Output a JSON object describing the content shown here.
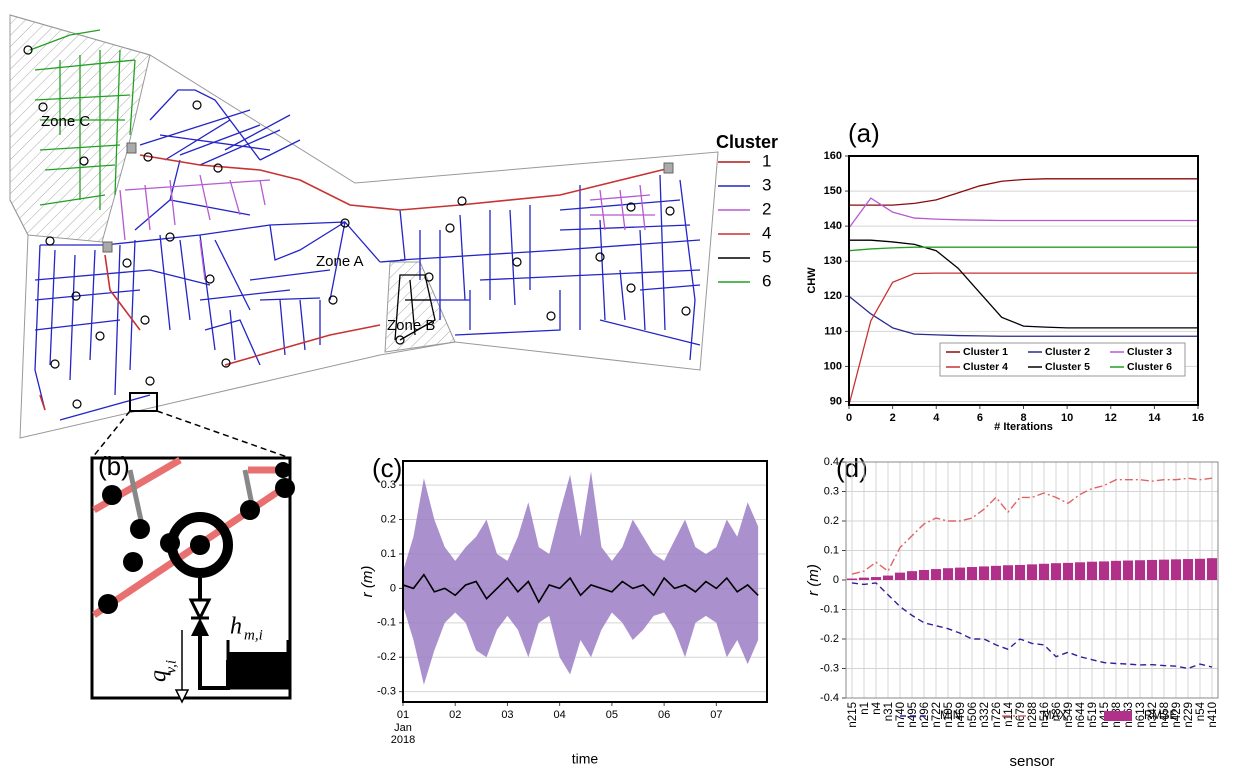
{
  "map": {
    "zones": [
      "Zone A",
      "Zone B",
      "Zone C"
    ],
    "legend_title": "Cluster",
    "clusters": [
      {
        "label": "1",
        "color": "#b01c1c"
      },
      {
        "label": "3",
        "color": "#2424c8"
      },
      {
        "label": "2",
        "color": "#b55ad2"
      },
      {
        "label": "4",
        "color": "#c83232"
      },
      {
        "label": "5",
        "color": "#000000"
      },
      {
        "label": "6",
        "color": "#22a022"
      }
    ]
  },
  "inset": {
    "label": "(b)",
    "flow_symbol": "q",
    "flow_subscript": "v,i",
    "head_symbol": "h",
    "head_subscript": "m,i"
  },
  "chart_data": [
    {
      "type": "line",
      "title": "(a)",
      "xlabel": "# Iterations",
      "ylabel": "CHW",
      "x": [
        0,
        1,
        2,
        3,
        4,
        5,
        6,
        7,
        8,
        9,
        10,
        11,
        12,
        13,
        14,
        15,
        16
      ],
      "xlim": [
        0,
        16
      ],
      "xticks": [
        0,
        2,
        4,
        6,
        8,
        10,
        12,
        14,
        16
      ],
      "ylim": [
        89,
        160
      ],
      "yticks": [
        90,
        100,
        110,
        120,
        130,
        140,
        150,
        160
      ],
      "grid": true,
      "series": [
        {
          "name": "Cluster 1",
          "color": "#8b0a0a",
          "values": [
            146,
            146,
            146,
            146.5,
            147.5,
            149.5,
            151.5,
            152.8,
            153.3,
            153.5,
            153.5,
            153.5,
            153.5,
            153.5,
            153.5,
            153.5,
            153.5
          ]
        },
        {
          "name": "Cluster 2",
          "color": "#2a2a8a",
          "values": [
            120,
            115,
            111,
            109.2,
            109,
            108.8,
            108.7,
            108.6,
            108.6,
            108.6,
            108.6,
            108.6,
            108.6,
            108.6,
            108.6,
            108.6,
            108.6
          ]
        },
        {
          "name": "Cluster 3",
          "color": "#b55ad2",
          "values": [
            139.5,
            148,
            144,
            142.3,
            142,
            141.8,
            141.7,
            141.6,
            141.6,
            141.6,
            141.6,
            141.6,
            141.6,
            141.6,
            141.6,
            141.6,
            141.6
          ]
        },
        {
          "name": "Cluster 4",
          "color": "#c83232",
          "values": [
            89,
            113,
            124,
            126.5,
            126.6,
            126.6,
            126.6,
            126.6,
            126.6,
            126.6,
            126.6,
            126.6,
            126.6,
            126.6,
            126.6,
            126.6,
            126.6
          ]
        },
        {
          "name": "Cluster 5",
          "color": "#000000",
          "values": [
            136,
            136,
            135.5,
            134.8,
            133,
            128,
            121,
            114,
            111.5,
            111.2,
            111,
            111,
            111,
            111,
            111,
            111,
            111
          ]
        },
        {
          "name": "Cluster 6",
          "color": "#22a022",
          "values": [
            133,
            133.5,
            133.8,
            134,
            134,
            134,
            134,
            134,
            134,
            134,
            134,
            134,
            134,
            134,
            134,
            134,
            134
          ]
        }
      ]
    },
    {
      "type": "band",
      "title": "(c)",
      "xlabel": "time",
      "ylabel": "r (m)",
      "x": [
        1.0,
        1.2,
        1.4,
        1.6,
        1.8,
        2.0,
        2.2,
        2.4,
        2.6,
        2.8,
        3.0,
        3.2,
        3.4,
        3.6,
        3.8,
        4.0,
        4.2,
        4.4,
        4.6,
        4.8,
        5.0,
        5.2,
        5.4,
        5.6,
        5.8,
        6.0,
        6.2,
        6.4,
        6.6,
        6.8,
        7.0,
        7.2,
        7.4,
        7.6,
        7.8
      ],
      "xlim": [
        1,
        7.97
      ],
      "xticks": [
        {
          "value": 1,
          "label": "01"
        },
        {
          "value": 2,
          "label": "02"
        },
        {
          "value": 3,
          "label": "03"
        },
        {
          "value": 4,
          "label": "04"
        },
        {
          "value": 5,
          "label": "05"
        },
        {
          "value": 6,
          "label": "06"
        },
        {
          "value": 7,
          "label": "07"
        }
      ],
      "x_sublabels": [
        "Jan",
        "2018"
      ],
      "ylim": [
        -0.33,
        0.37
      ],
      "yticks": [
        -0.3,
        -0.2,
        -0.1,
        0.0,
        0.1,
        0.2,
        0.3
      ],
      "grid": true,
      "color": "#000000",
      "values": [
        0.01,
        0.0,
        0.04,
        -0.01,
        0.0,
        -0.02,
        0.01,
        0.02,
        -0.03,
        0.0,
        0.03,
        -0.01,
        0.02,
        -0.04,
        0.01,
        0.0,
        0.03,
        -0.02,
        0.01,
        0.0,
        -0.01,
        0.02,
        0.0,
        0.01,
        -0.02,
        0.03,
        0.0,
        0.01,
        -0.01,
        0.02,
        0.0,
        0.03,
        -0.01,
        0.01,
        -0.02
      ],
      "band": {
        "color": "#9b7cc4",
        "upper": [
          0.05,
          0.15,
          0.32,
          0.2,
          0.12,
          0.08,
          0.12,
          0.15,
          0.2,
          0.1,
          0.08,
          0.15,
          0.25,
          0.12,
          0.1,
          0.22,
          0.33,
          0.15,
          0.34,
          0.12,
          0.08,
          0.12,
          0.2,
          0.15,
          0.1,
          0.08,
          0.14,
          0.2,
          0.12,
          0.1,
          0.12,
          0.2,
          0.15,
          0.25,
          0.18
        ],
        "lower": [
          -0.05,
          -0.15,
          -0.28,
          -0.18,
          -0.1,
          -0.07,
          -0.1,
          -0.18,
          -0.2,
          -0.12,
          -0.08,
          -0.12,
          -0.2,
          -0.1,
          -0.08,
          -0.2,
          -0.25,
          -0.15,
          -0.2,
          -0.12,
          -0.07,
          -0.1,
          -0.15,
          -0.12,
          -0.08,
          -0.07,
          -0.12,
          -0.2,
          -0.1,
          -0.08,
          -0.1,
          -0.2,
          -0.15,
          -0.22,
          -0.15
        ]
      }
    },
    {
      "type": "bar",
      "title": "(d)",
      "xlabel": "sensor",
      "ylabel": "r (m)",
      "categories": [
        "n215",
        "n1",
        "n4",
        "n31",
        "n740",
        "n495",
        "n296",
        "n722",
        "n105",
        "n469",
        "n506",
        "n332",
        "n726",
        "n114",
        "n679",
        "n288",
        "n516",
        "n36",
        "n549",
        "n644",
        "n519",
        "n415",
        "n188",
        "n163",
        "n613",
        "n342",
        "n458",
        "n429",
        "n229",
        "n54",
        "n410"
      ],
      "ylim": [
        -0.4,
        0.4
      ],
      "yticks": [
        -0.4,
        -0.3,
        -0.2,
        -0.1,
        0.0,
        0.1,
        0.2,
        0.3,
        0.4
      ],
      "grid": true,
      "series": [
        {
          "name": "MIN",
          "type": "line",
          "dash": "dashed",
          "color": "#3a1a9a",
          "values": [
            -0.01,
            -0.015,
            -0.01,
            -0.05,
            -0.09,
            -0.12,
            -0.145,
            -0.155,
            -0.165,
            -0.18,
            -0.2,
            -0.2,
            -0.22,
            -0.235,
            -0.2,
            -0.215,
            -0.22,
            -0.26,
            -0.245,
            -0.26,
            -0.27,
            -0.28,
            -0.283,
            -0.285,
            -0.288,
            -0.287,
            -0.29,
            -0.292,
            -0.3,
            -0.285,
            -0.295
          ]
        },
        {
          "name": "MAX",
          "type": "line",
          "dash": "dashdot",
          "color": "#e06464",
          "values": [
            0.02,
            0.03,
            0.06,
            0.03,
            0.11,
            0.15,
            0.19,
            0.21,
            0.2,
            0.2,
            0.21,
            0.24,
            0.28,
            0.23,
            0.28,
            0.28,
            0.295,
            0.28,
            0.26,
            0.29,
            0.31,
            0.32,
            0.34,
            0.34,
            0.34,
            0.335,
            0.34,
            0.34,
            0.345,
            0.34,
            0.345
          ]
        },
        {
          "name": "RMSE",
          "type": "bar",
          "color": "#b0308a",
          "values": [
            0.005,
            0.008,
            0.01,
            0.015,
            0.025,
            0.03,
            0.034,
            0.037,
            0.04,
            0.042,
            0.044,
            0.046,
            0.048,
            0.05,
            0.051,
            0.053,
            0.055,
            0.057,
            0.058,
            0.06,
            0.062,
            0.063,
            0.065,
            0.066,
            0.067,
            0.068,
            0.069,
            0.07,
            0.071,
            0.072,
            0.074
          ]
        }
      ]
    }
  ]
}
